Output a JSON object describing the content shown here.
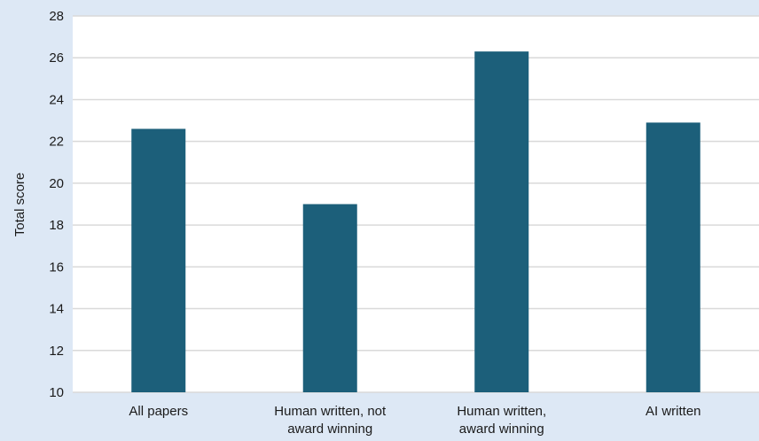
{
  "chart_data": {
    "type": "bar",
    "title": "",
    "xlabel": "",
    "ylabel": "Total score",
    "ylim": [
      10,
      28
    ],
    "yticks": [
      10,
      12,
      14,
      16,
      18,
      20,
      22,
      24,
      26,
      28
    ],
    "grid": true,
    "legend": "none",
    "categories": [
      [
        "All papers"
      ],
      [
        "Human written, not",
        "award winning"
      ],
      [
        "Human written,",
        "award winning"
      ],
      [
        "AI written"
      ]
    ],
    "values": [
      22.6,
      19.0,
      26.3,
      22.9
    ],
    "colors": {
      "bar": "#1c5f7a",
      "plot_background": "#ffffff",
      "page_background": "#dde8f5",
      "gridline": "#d9d9d9"
    }
  }
}
